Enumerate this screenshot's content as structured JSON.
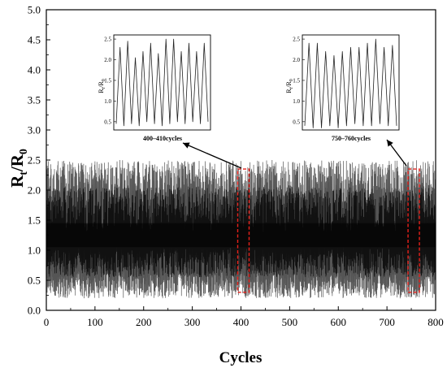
{
  "chart_data": [
    {
      "type": "line",
      "xlabel": "Cycles",
      "ylabel_main": "R",
      "ylabel_sub": "t",
      "ylabel_den_main": "R",
      "ylabel_den_sub": "0",
      "xlim": [
        0,
        800
      ],
      "ylim": [
        0,
        5.0
      ],
      "x_ticks": [
        0,
        100,
        200,
        300,
        400,
        500,
        600,
        700,
        800
      ],
      "y_ticks": [
        "0.0",
        "0.5",
        "1.0",
        "1.5",
        "2.0",
        "2.5",
        "3.0",
        "3.5",
        "4.0",
        "4.5",
        "5.0"
      ],
      "series": [
        {
          "cycles": 800,
          "min_approx": 0.2,
          "max_approx": 2.5,
          "mean_approx": 1.3
        }
      ],
      "highlights": [
        {
          "x_range": [
            400,
            410
          ],
          "y_range": [
            0.3,
            2.35
          ]
        },
        {
          "x_range": [
            750,
            760
          ],
          "y_range": [
            0.3,
            2.35
          ]
        }
      ],
      "grid": false,
      "legend": "none"
    },
    {
      "type": "line",
      "caption": "400–410cycles",
      "ylabel_main": "R",
      "ylabel_sub": "t",
      "ylabel_den_main": "R",
      "ylabel_den_sub": "0",
      "ylim": [
        0.3,
        2.6
      ],
      "y_ticks": [
        "0.5",
        "1.0",
        "1.5",
        "2.0",
        "2.5"
      ],
      "peaks": [
        2.3,
        2.45,
        2.05,
        2.2,
        2.4,
        2.15,
        2.5,
        2.5,
        2.2,
        2.4,
        2.2,
        2.4
      ],
      "troughs": [
        0.45,
        0.4,
        0.45,
        0.4,
        0.5,
        0.45,
        0.4,
        0.45,
        0.5,
        0.45,
        0.5,
        0.45,
        0.5
      ]
    },
    {
      "type": "line",
      "caption": "750–760cycles",
      "ylabel_main": "R",
      "ylabel_sub": "t",
      "ylabel_den_main": "R",
      "ylabel_den_sub": "0",
      "ylim": [
        0.3,
        2.6
      ],
      "y_ticks": [
        "0.5",
        "1.0",
        "1.5",
        "2.0",
        "2.5"
      ],
      "peaks": [
        2.4,
        2.4,
        2.2,
        2.1,
        2.2,
        2.3,
        2.3,
        2.4,
        2.5,
        2.3,
        2.35
      ],
      "troughs": [
        0.4,
        0.35,
        0.35,
        0.4,
        0.35,
        0.4,
        0.45,
        0.4,
        0.4,
        0.45,
        0.4,
        0.4
      ]
    }
  ]
}
